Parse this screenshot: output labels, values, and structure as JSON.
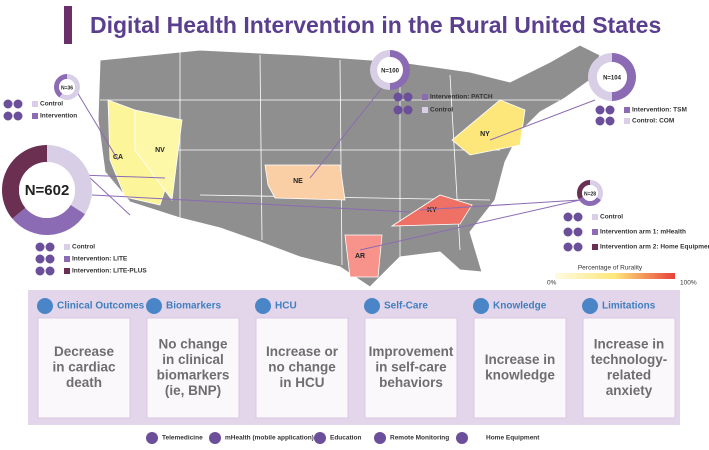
{
  "title": "Digital Health Intervention in the Rural United States",
  "states": [
    {
      "label": "CA",
      "color": "#fdf59a"
    },
    {
      "label": "NV",
      "color": "#fdf7a8"
    },
    {
      "label": "NE",
      "color": "#fbcfa6"
    },
    {
      "label": "NY",
      "color": "#fde77a"
    },
    {
      "label": "KY",
      "color": "#ef7065"
    },
    {
      "label": "AR",
      "color": "#f7938a"
    }
  ],
  "rurality_legend": {
    "title": "Percentage of Rurality",
    "min_label": "0%",
    "max_label": "100%"
  },
  "studies": [
    {
      "n_label": "N=36",
      "arms": [
        {
          "name": "Control",
          "color": "#d8cfe6",
          "share": 60
        },
        {
          "name": "Intervention",
          "color": "#8b6bb3",
          "share": 40
        }
      ]
    },
    {
      "n_label": "N=602",
      "arms": [
        {
          "name": "Control",
          "color": "#d8cfe6",
          "share": 34
        },
        {
          "name": "Intervention: LITE",
          "color": "#8b6bb3",
          "share": 30
        },
        {
          "name": "Intervention: LITE-PLUS",
          "color": "#6b2f52",
          "share": 36
        }
      ]
    },
    {
      "n_label": "N=100",
      "arms": [
        {
          "name": "Intervention: PATCH",
          "color": "#8b6bb3",
          "share": 50
        },
        {
          "name": "Control",
          "color": "#d8cfe6",
          "share": 50
        }
      ]
    },
    {
      "n_label": "N=104",
      "arms": [
        {
          "name": "Intervention: TSM",
          "color": "#8b6bb3",
          "share": 50
        },
        {
          "name": "Control: COM",
          "color": "#d8cfe6",
          "share": 50
        }
      ]
    },
    {
      "n_label": "N=28",
      "arms": [
        {
          "name": "Control",
          "color": "#d8cfe6",
          "share": 34
        },
        {
          "name": "Intervention arm 1: mHealth",
          "color": "#8b6bb3",
          "share": 33
        },
        {
          "name": "Intervention arm 2: Home Equipment",
          "color": "#6b2f52",
          "share": 33
        }
      ]
    }
  ],
  "domains": [
    {
      "header": "Clinical Outcomes",
      "lines": [
        "Decrease",
        "in cardiac",
        "death"
      ]
    },
    {
      "header": "Biomarkers",
      "lines": [
        "No change",
        "in clinical",
        "biomarkers",
        "(ie, BNP)"
      ]
    },
    {
      "header": "HCU",
      "lines": [
        "Increase or",
        "no change",
        "in HCU"
      ]
    },
    {
      "header": "Self-Care",
      "lines": [
        "Improvement",
        "in self-care",
        "behaviors"
      ]
    },
    {
      "header": "Knowledge",
      "lines": [
        "Increase in",
        "knowledge"
      ]
    },
    {
      "header": "Limitations",
      "lines": [
        "Increase in",
        "technology-",
        "related",
        "anxiety"
      ]
    }
  ],
  "icon_legend": [
    "Telemedicine",
    "mHealth (mobile application)",
    "Education",
    "Remote Monitoring",
    "Home Equipment"
  ]
}
